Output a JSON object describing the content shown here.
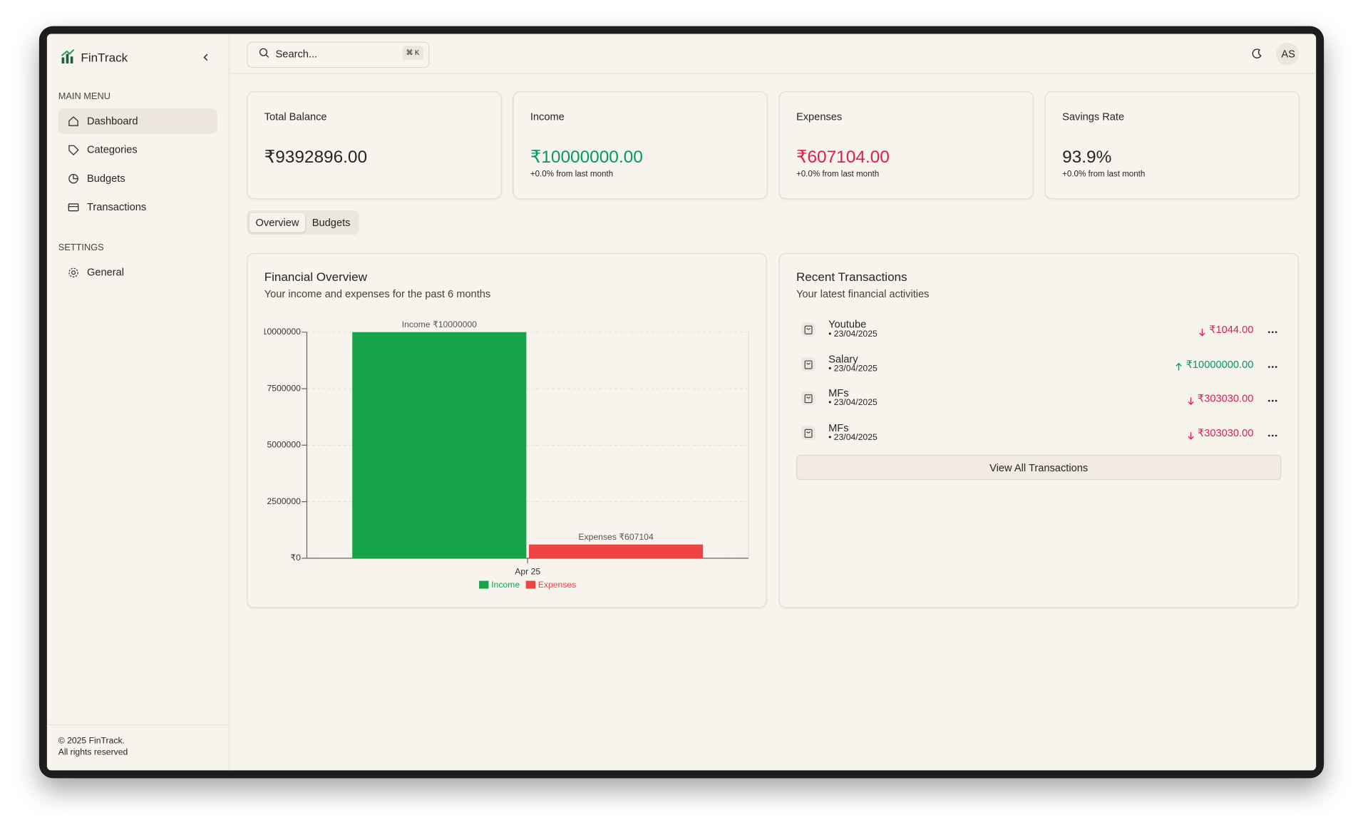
{
  "app": {
    "name": "FinTrack"
  },
  "sidebar": {
    "main_menu_title": "MAIN MENU",
    "main_menu": [
      "Dashboard",
      "Categories",
      "Budgets",
      "Transactions"
    ],
    "settings_title": "SETTINGS",
    "settings": [
      "General"
    ],
    "footer": [
      "© 2025 FinTrack.",
      "All rights reserved"
    ]
  },
  "header": {
    "search_placeholder": "Search...",
    "shortcut": "⌘ K",
    "avatar": "AS"
  },
  "stats": [
    {
      "label": "Total Balance",
      "value": "₹9392896.00"
    },
    {
      "label": "Income",
      "value": "₹10000000.00",
      "change": "+0.0% from last month"
    },
    {
      "label": "Expenses",
      "value": "₹607104.00",
      "change": "+0.0% from last month"
    },
    {
      "label": "Savings Rate",
      "value": "93.9%",
      "change": "+0.0% from last month"
    }
  ],
  "tabs": [
    "Overview",
    "Budgets"
  ],
  "overview": {
    "title": "Financial Overview",
    "subtitle": "Your income and expenses for the past 6 months",
    "chart_data": {
      "type": "bar",
      "categories": [
        "Apr 25"
      ],
      "series": [
        {
          "name": "Income",
          "color": "#16a34a",
          "values": [
            10000000
          ],
          "value_labels": [
            "₹10000000"
          ]
        },
        {
          "name": "Expenses",
          "color": "#ef4444",
          "values": [
            607104
          ],
          "value_labels": [
            "₹607104"
          ]
        }
      ],
      "ylim": [
        0,
        10000000
      ],
      "yticks": [
        {
          "value": 0,
          "label": "₹0"
        },
        2500000,
        5000000,
        7500000,
        10000000
      ],
      "grid": true
    }
  },
  "transactions": {
    "title": "Recent Transactions",
    "subtitle": "Your latest financial activities",
    "items": [
      {
        "name": "Youtube",
        "date": "• 23/04/2025",
        "amount": "₹1044.00",
        "direction": "down"
      },
      {
        "name": "Salary",
        "date": "• 23/04/2025",
        "amount": "₹10000000.00",
        "direction": "up"
      },
      {
        "name": "MFs",
        "date": "• 23/04/2025",
        "amount": "₹303030.00",
        "direction": "down"
      },
      {
        "name": "MFs",
        "date": "• 23/04/2025",
        "amount": "₹303030.00",
        "direction": "down"
      }
    ],
    "button": "View All Transactions"
  }
}
